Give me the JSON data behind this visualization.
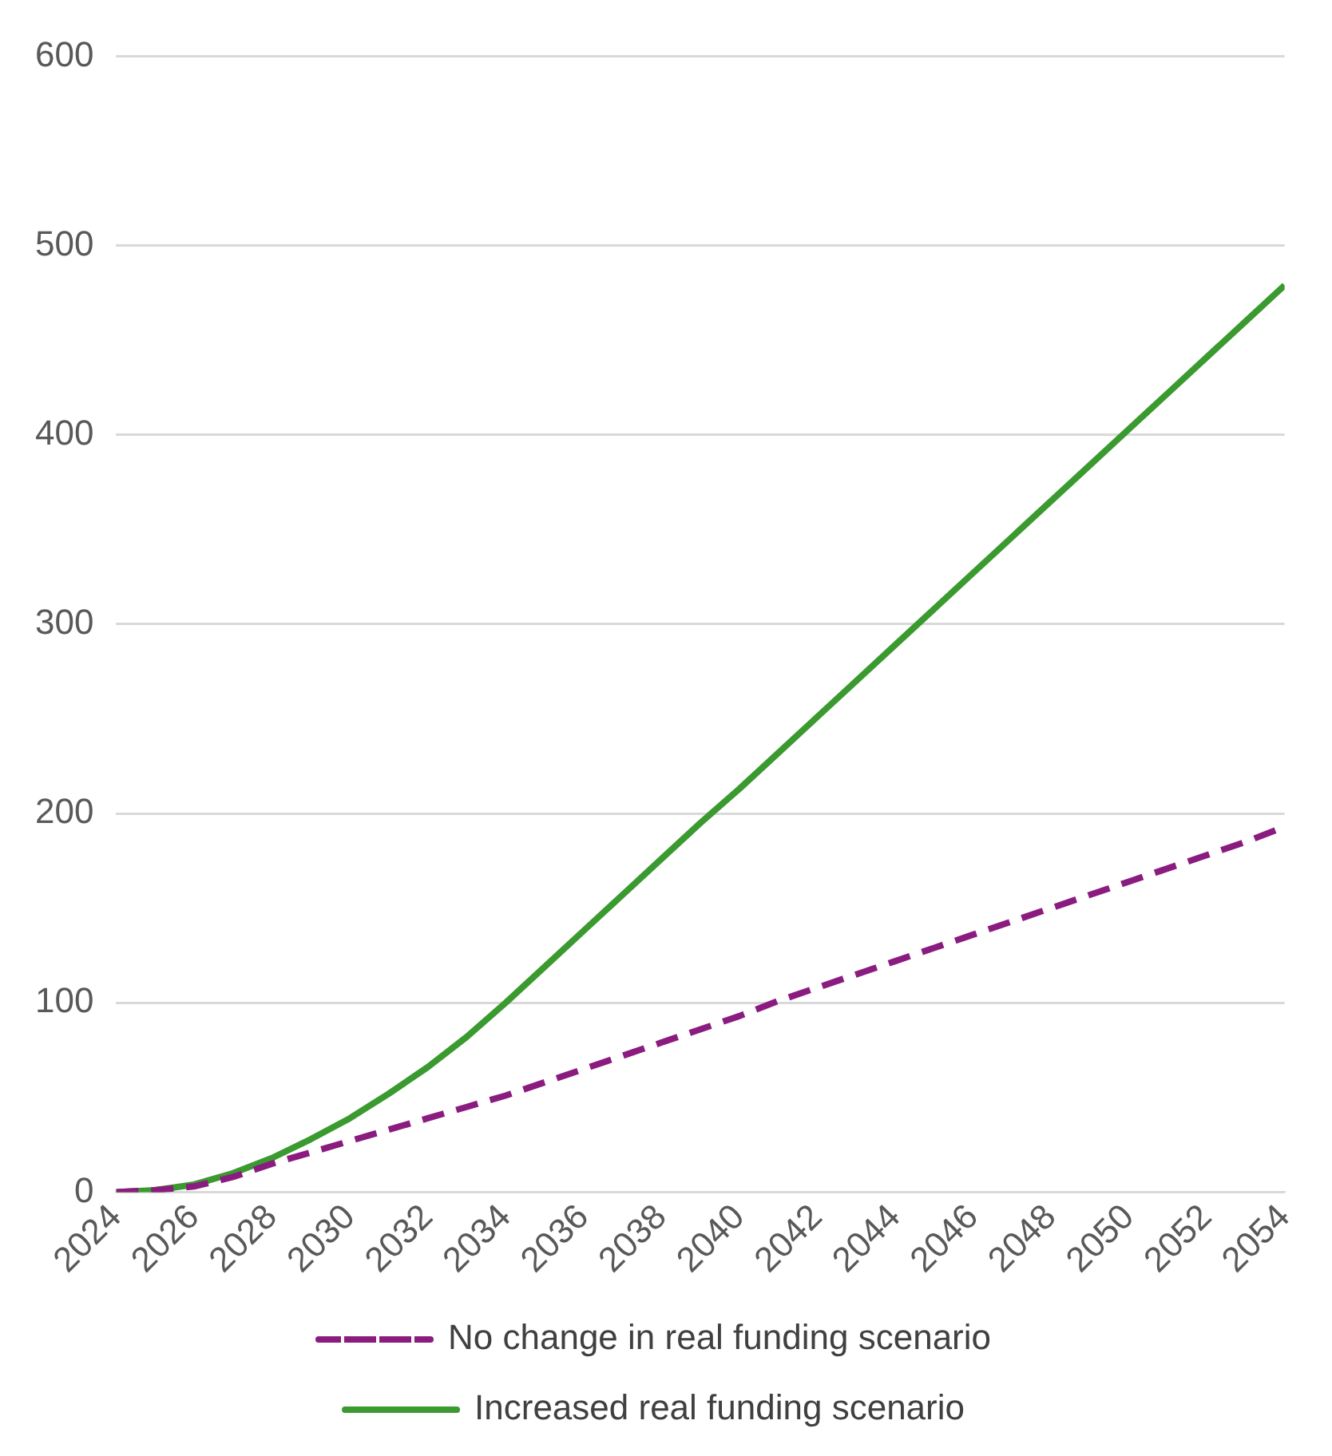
{
  "chart_data": {
    "type": "line",
    "x": [
      2024,
      2025,
      2026,
      2027,
      2028,
      2029,
      2030,
      2031,
      2032,
      2033,
      2034,
      2035,
      2036,
      2037,
      2038,
      2039,
      2040,
      2041,
      2042,
      2043,
      2044,
      2045,
      2046,
      2047,
      2048,
      2049,
      2050,
      2051,
      2052,
      2053,
      2054
    ],
    "series": [
      {
        "name": "No change in real funding scenario",
        "color": "#8b1c7f",
        "line_style": "dashed",
        "values": [
          0,
          1,
          3,
          8,
          15,
          21,
          27,
          33,
          39,
          45,
          51,
          58,
          65,
          72,
          79,
          86,
          93,
          101,
          108,
          115,
          122,
          129,
          136,
          143,
          150,
          157,
          164,
          171,
          178,
          185,
          193
        ]
      },
      {
        "name": "Increased real funding scenario",
        "color": "#3a9a2f",
        "line_style": "solid",
        "values": [
          0,
          1,
          4,
          10,
          18,
          28,
          39,
          52,
          66,
          82,
          100,
          119,
          138,
          157,
          176,
          195,
          213,
          232,
          251,
          270,
          289,
          308,
          327,
          346,
          365,
          384,
          403,
          422,
          441,
          460,
          479
        ]
      }
    ],
    "xlim": [
      2024,
      2054
    ],
    "xticks": [
      2024,
      2026,
      2028,
      2030,
      2032,
      2034,
      2036,
      2038,
      2040,
      2042,
      2044,
      2046,
      2048,
      2050,
      2052,
      2054
    ],
    "ylim": [
      0,
      600
    ],
    "yticks": [
      0,
      100,
      200,
      300,
      400,
      500,
      600
    ],
    "grid": "y",
    "legend": "bottom",
    "marker": "none"
  }
}
